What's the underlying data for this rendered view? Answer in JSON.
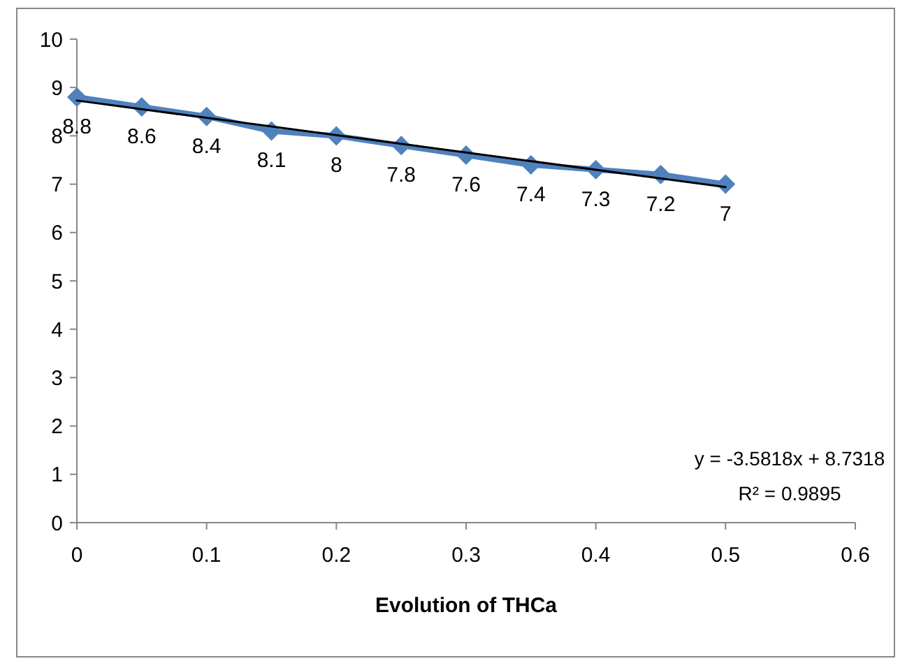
{
  "chart_data": {
    "type": "line",
    "xlabel": "Evolution of THCa",
    "xlim": [
      0,
      0.6
    ],
    "xticks": [
      0,
      0.1,
      0.2,
      0.3,
      0.4,
      0.5,
      0.6
    ],
    "ylim": [
      0,
      10
    ],
    "yticks": [
      0,
      1,
      2,
      3,
      4,
      5,
      6,
      7,
      8,
      9,
      10
    ],
    "marker": "diamond",
    "line_style": "solid",
    "series": [
      {
        "color": "#4f81bd",
        "x": [
          0,
          0.05,
          0.1,
          0.15,
          0.2,
          0.25,
          0.3,
          0.35,
          0.4,
          0.45,
          0.5
        ],
        "values": [
          8.8,
          8.6,
          8.4,
          8.1,
          8,
          7.8,
          7.6,
          7.4,
          7.3,
          7.2,
          7
        ],
        "value_labels": [
          "8.8",
          "8.6",
          "8.4",
          "8.1",
          "8",
          "7.8",
          "7.6",
          "7.4",
          "7.3",
          "7.2",
          "7"
        ]
      },
      {
        "type": "line",
        "marker": "none",
        "color": "#000000",
        "x": [
          0,
          0.5
        ],
        "values": [
          8.73,
          6.94
        ]
      }
    ],
    "annotations": [
      "y = -3.5818x + 8.7318",
      "R² = 0.9895"
    ]
  }
}
